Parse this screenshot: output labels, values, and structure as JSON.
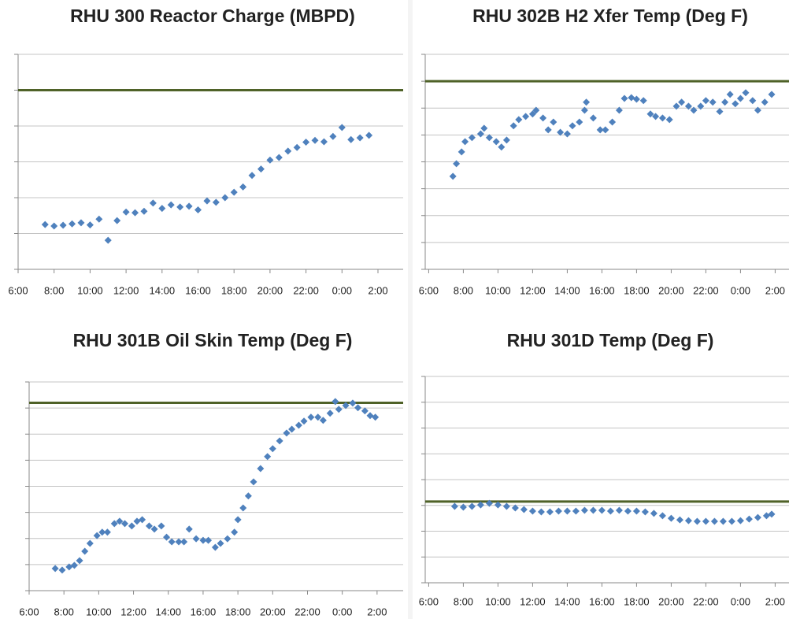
{
  "chart_data": [
    {
      "type": "scatter",
      "title": "RHU 300 Reactor Charge (MBPD)",
      "color": "#4f81bd",
      "x": [
        7.5,
        8,
        8.5,
        9,
        9.5,
        10,
        10.5,
        11,
        11.5,
        12,
        12.5,
        13,
        13.5,
        14,
        14.5,
        15,
        15.5,
        16,
        16.5,
        17,
        17.5,
        18,
        18.5,
        19,
        19.5,
        20,
        20.5,
        21,
        21.5,
        22,
        22.5,
        23,
        23.5,
        24,
        24.5,
        25,
        25.5
      ],
      "values": [
        1.25,
        1.21,
        1.23,
        1.27,
        1.3,
        1.24,
        1.4,
        0.81,
        1.36,
        1.6,
        1.58,
        1.62,
        1.85,
        1.7,
        1.8,
        1.74,
        1.76,
        1.66,
        1.91,
        1.87,
        2.0,
        2.15,
        2.3,
        2.62,
        2.8,
        3.05,
        3.12,
        3.3,
        3.4,
        3.55,
        3.6,
        3.56,
        3.71,
        3.96,
        3.62,
        3.67,
        3.74
      ],
      "xlim": [
        6,
        27.4
      ],
      "ylim": [
        0,
        6
      ],
      "yticks": [
        0,
        1,
        2,
        3,
        4,
        5,
        6
      ],
      "grid": true,
      "reference_line": 5,
      "reference_color": "#4f6228",
      "xticks": [
        {
          "value": 6,
          "label": "6:00"
        },
        {
          "value": 8,
          "label": "8:00"
        },
        {
          "value": 10,
          "label": "10:00"
        },
        {
          "value": 12,
          "label": "12:00"
        },
        {
          "value": 14,
          "label": "14:00"
        },
        {
          "value": 16,
          "label": "16:00"
        },
        {
          "value": 18,
          "label": "18:00"
        },
        {
          "value": 20,
          "label": "20:00"
        },
        {
          "value": 22,
          "label": "22:00"
        },
        {
          "value": 24,
          "label": "0:00"
        },
        {
          "value": 26,
          "label": "2:00"
        }
      ]
    },
    {
      "type": "scatter",
      "title": "RHU 302B H2 Xfer Temp (Deg F)",
      "color": "#4f81bd",
      "x": [
        7.4,
        7.6,
        7.9,
        8.1,
        8.5,
        9,
        9.2,
        9.5,
        9.9,
        10.2,
        10.5,
        10.9,
        11.2,
        11.6,
        12,
        12.2,
        12.6,
        12.9,
        13.2,
        13.6,
        14,
        14.3,
        14.7,
        15,
        15.1,
        15.5,
        15.9,
        16.2,
        16.6,
        17,
        17.3,
        17.7,
        18,
        18.4,
        18.8,
        19.1,
        19.5,
        19.9,
        20.3,
        20.6,
        21,
        21.3,
        21.7,
        22,
        22.4,
        22.8,
        23.1,
        23.4,
        23.7,
        24,
        24.3,
        24.7,
        25,
        25.4,
        25.8
      ],
      "values": [
        3.46,
        3.93,
        4.37,
        4.75,
        4.9,
        5.04,
        5.25,
        4.9,
        4.75,
        4.55,
        4.81,
        5.34,
        5.57,
        5.69,
        5.78,
        5.92,
        5.63,
        5.19,
        5.48,
        5.1,
        5.04,
        5.34,
        5.48,
        5.92,
        6.22,
        5.63,
        5.19,
        5.19,
        5.48,
        5.92,
        6.36,
        6.39,
        6.33,
        6.28,
        5.78,
        5.69,
        5.63,
        5.57,
        6.07,
        6.22,
        6.07,
        5.92,
        6.07,
        6.28,
        6.22,
        5.87,
        6.22,
        6.51,
        6.16,
        6.36,
        6.57,
        6.28,
        5.92,
        6.22,
        6.51
      ],
      "xlim": [
        5.8,
        26.8
      ],
      "ylim": [
        0,
        8
      ],
      "yticks": [
        0,
        1,
        2,
        3,
        4,
        5,
        6,
        7,
        8
      ],
      "grid": true,
      "reference_line": 7,
      "reference_color": "#4f6228",
      "xticks": [
        {
          "value": 6,
          "label": "6:00"
        },
        {
          "value": 8,
          "label": "8:00"
        },
        {
          "value": 10,
          "label": "10:00"
        },
        {
          "value": 12,
          "label": "12:00"
        },
        {
          "value": 14,
          "label": "14:00"
        },
        {
          "value": 16,
          "label": "16:00"
        },
        {
          "value": 18,
          "label": "18:00"
        },
        {
          "value": 20,
          "label": "20:00"
        },
        {
          "value": 22,
          "label": "22:00"
        },
        {
          "value": 24,
          "label": "0:00"
        },
        {
          "value": 26,
          "label": "2:00"
        }
      ]
    },
    {
      "type": "scatter",
      "title": "RHU 301B Oil Skin Temp (Deg F)",
      "color": "#4f81bd",
      "x": [
        7.5,
        7.9,
        8.3,
        8.6,
        8.9,
        9.2,
        9.5,
        9.9,
        10.2,
        10.5,
        10.9,
        11.2,
        11.5,
        11.9,
        12.2,
        12.5,
        12.9,
        13.2,
        13.6,
        13.9,
        14.2,
        14.6,
        14.9,
        15.2,
        15.6,
        16,
        16.3,
        16.7,
        17,
        17.4,
        17.8,
        18,
        18.3,
        18.6,
        18.9,
        19.3,
        19.7,
        20,
        20.4,
        20.8,
        21.1,
        21.5,
        21.8,
        22.2,
        22.6,
        22.9,
        23.3,
        23.6,
        23.8,
        24.2,
        24.6,
        24.9,
        25.3,
        25.6,
        25.9
      ],
      "values": [
        0.85,
        0.79,
        0.91,
        0.97,
        1.15,
        1.51,
        1.81,
        2.11,
        2.24,
        2.24,
        2.57,
        2.66,
        2.57,
        2.48,
        2.66,
        2.72,
        2.48,
        2.36,
        2.48,
        2.05,
        1.87,
        1.87,
        1.87,
        2.36,
        1.99,
        1.93,
        1.93,
        1.66,
        1.81,
        1.99,
        2.24,
        2.72,
        3.17,
        3.63,
        4.17,
        4.68,
        5.14,
        5.44,
        5.74,
        6.04,
        6.19,
        6.34,
        6.5,
        6.65,
        6.65,
        6.53,
        6.8,
        7.25,
        6.95,
        7.1,
        7.19,
        7.01,
        6.89,
        6.71,
        6.65
      ],
      "xlim": [
        6,
        27.5
      ],
      "ylim": [
        0,
        8
      ],
      "yticks": [
        0,
        1,
        2,
        3,
        4,
        5,
        6,
        7,
        8
      ],
      "grid": true,
      "reference_line": 7.2,
      "reference_color": "#4f6228",
      "xticks": [
        {
          "value": 6,
          "label": "6:00"
        },
        {
          "value": 8,
          "label": "8:00"
        },
        {
          "value": 10,
          "label": "10:00"
        },
        {
          "value": 12,
          "label": "12:00"
        },
        {
          "value": 14,
          "label": "14:00"
        },
        {
          "value": 16,
          "label": "16:00"
        },
        {
          "value": 18,
          "label": "18:00"
        },
        {
          "value": 20,
          "label": "20:00"
        },
        {
          "value": 22,
          "label": "22:00"
        },
        {
          "value": 24,
          "label": "0:00"
        },
        {
          "value": 26,
          "label": "2:00"
        }
      ]
    },
    {
      "type": "scatter",
      "title": "RHU 301D Temp (Deg F)",
      "color": "#4f81bd",
      "x": [
        7.5,
        8,
        8.5,
        9,
        9.5,
        10,
        10.5,
        11,
        11.5,
        12,
        12.5,
        13,
        13.5,
        14,
        14.5,
        15,
        15.5,
        16,
        16.5,
        17,
        17.5,
        18,
        18.5,
        19,
        19.5,
        20,
        20.5,
        21,
        21.5,
        22,
        22.5,
        23,
        23.5,
        24,
        24.5,
        25,
        25.5,
        25.8
      ],
      "values": [
        2.96,
        2.93,
        2.96,
        3.02,
        3.08,
        3.02,
        2.96,
        2.9,
        2.84,
        2.78,
        2.75,
        2.75,
        2.78,
        2.78,
        2.78,
        2.81,
        2.81,
        2.81,
        2.78,
        2.81,
        2.78,
        2.78,
        2.75,
        2.69,
        2.6,
        2.5,
        2.44,
        2.41,
        2.38,
        2.38,
        2.38,
        2.38,
        2.38,
        2.41,
        2.47,
        2.53,
        2.6,
        2.66
      ],
      "xlim": [
        5.8,
        26.8
      ],
      "ylim": [
        0,
        8
      ],
      "yticks": [
        0,
        1,
        2,
        3,
        4,
        5,
        6,
        7,
        8
      ],
      "grid": true,
      "reference_line": 3.15,
      "reference_color": "#4f6228",
      "xticks": [
        {
          "value": 6,
          "label": "6:00"
        },
        {
          "value": 8,
          "label": "8:00"
        },
        {
          "value": 10,
          "label": "10:00"
        },
        {
          "value": 12,
          "label": "12:00"
        },
        {
          "value": 14,
          "label": "14:00"
        },
        {
          "value": 16,
          "label": "16:00"
        },
        {
          "value": 18,
          "label": "18:00"
        },
        {
          "value": 20,
          "label": "20:00"
        },
        {
          "value": 22,
          "label": "22:00"
        },
        {
          "value": 24,
          "label": "0:00"
        },
        {
          "value": 26,
          "label": "2:00"
        }
      ]
    }
  ]
}
